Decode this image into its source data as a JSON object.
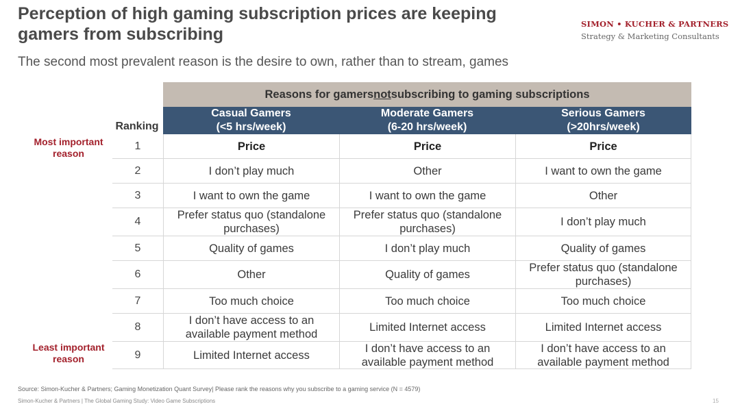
{
  "header": {
    "title": "Perception of high gaming subscription prices are keeping gamers from subscribing",
    "subtitle": "The second most prevalent reason is the desire to own, rather than to stream, games"
  },
  "logo": {
    "name": "SIMON • KUCHER & PARTNERS",
    "tagline": "Strategy & Marketing Consultants",
    "color": "#a3212c"
  },
  "table": {
    "title_before": "Reasons for gamers ",
    "title_emphasis": "not",
    "title_after": " subscribing to gaming subscriptions",
    "ranking_header": "Ranking",
    "side_labels": {
      "top": "Most important reason",
      "bottom": "Least important reason"
    },
    "columns": [
      {
        "name": "Casual Gamers",
        "range": "(<5 hrs/week)"
      },
      {
        "name": "Moderate Gamers",
        "range": "(6-20 hrs/week)"
      },
      {
        "name": "Serious Gamers",
        "range": "(>20hrs/week)"
      }
    ],
    "rows": [
      {
        "rank": "1",
        "casual": "Price",
        "moderate": "Price",
        "serious": "Price"
      },
      {
        "rank": "2",
        "casual": "I don’t play much",
        "moderate": "Other",
        "serious": "I want to own the game"
      },
      {
        "rank": "3",
        "casual": "I want to own the game",
        "moderate": "I want to own the game",
        "serious": "Other"
      },
      {
        "rank": "4",
        "casual": "Prefer status quo (standalone purchases)",
        "moderate": "Prefer status quo (standalone purchases)",
        "serious": "I don’t play much"
      },
      {
        "rank": "5",
        "casual": "Quality of games",
        "moderate": "I don’t play much",
        "serious": "Quality of games"
      },
      {
        "rank": "6",
        "casual": "Other",
        "moderate": "Quality of games",
        "serious": "Prefer status quo (standalone purchases)"
      },
      {
        "rank": "7",
        "casual": "Too much choice",
        "moderate": "Too much choice",
        "serious": "Too much choice"
      },
      {
        "rank": "8",
        "casual": "I don’t have access to an available payment method",
        "moderate": "Limited Internet access",
        "serious": "Limited Internet access"
      },
      {
        "rank": "9",
        "casual": "Limited Internet access",
        "moderate": "I don’t have access to an available payment method",
        "serious": "I don’t have access to an available payment method"
      }
    ],
    "colors": {
      "title_bar": "#c4bbb2",
      "header_bar": "#3b5675"
    }
  },
  "footer": {
    "source": "Source: Simon-Kucher & Partners; Gaming Monetization Quant Survey| Please rank the reasons why you subscribe to a gaming service (N = 4579)",
    "study": "Simon-Kucher & Partners | The Global Gaming Study: Video Game Subscriptions",
    "page_number": "15"
  }
}
